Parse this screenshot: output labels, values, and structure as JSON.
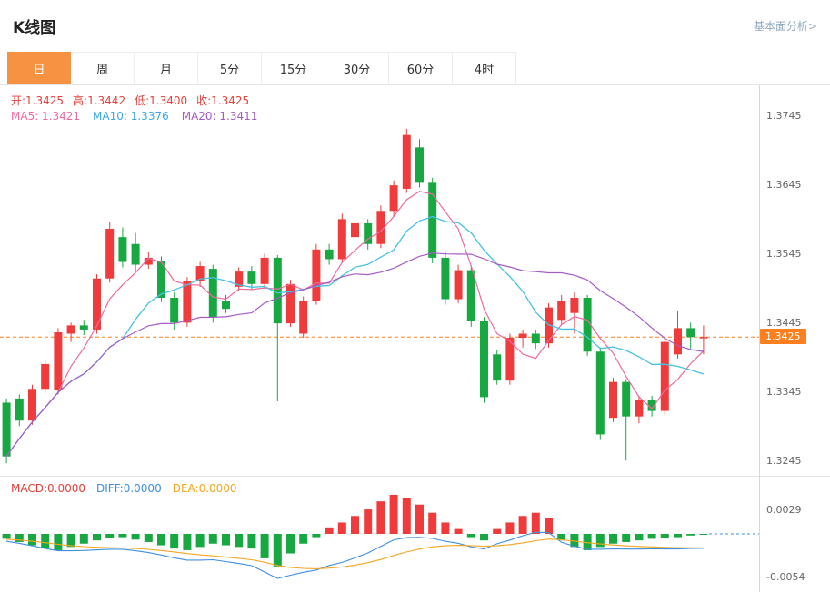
{
  "header": {
    "title": "K线图",
    "link": "基本面分析>"
  },
  "tabs": [
    {
      "id": "day",
      "label": "日",
      "active": true
    },
    {
      "id": "week",
      "label": "周",
      "active": false
    },
    {
      "id": "month",
      "label": "月",
      "active": false
    },
    {
      "id": "5min",
      "label": "5分",
      "active": false
    },
    {
      "id": "15min",
      "label": "15分",
      "active": false
    },
    {
      "id": "30min",
      "label": "30分",
      "active": false
    },
    {
      "id": "60min",
      "label": "60分",
      "active": false
    },
    {
      "id": "4hour",
      "label": "4时",
      "active": false
    }
  ],
  "legend": {
    "ohlc": [
      {
        "text": "开:1.3425",
        "color": "#e8403a"
      },
      {
        "text": "高:1.3442",
        "color": "#e8403a"
      },
      {
        "text": "低:1.3400",
        "color": "#e8403a"
      },
      {
        "text": "收:1.3425",
        "color": "#e8403a"
      }
    ],
    "ma": [
      {
        "text": "MA5: 1.3421",
        "color": "#f0689f"
      },
      {
        "text": "MA10: 1.3376",
        "color": "#3aa8e8"
      },
      {
        "text": "MA20: 1.3411",
        "color": "#a55cc5"
      }
    ],
    "macd": [
      {
        "text": "MACD:0.0000",
        "color": "#e8403a"
      },
      {
        "text": "DIFF:0.0000",
        "color": "#3e8fe0"
      },
      {
        "text": "DEA:0.0000",
        "color": "#f5a623"
      }
    ]
  },
  "price_axis": {
    "labels": [
      "1.3745",
      "1.3645",
      "1.3545",
      "1.3445",
      "1.3345",
      "1.3245"
    ],
    "values": [
      1.3745,
      1.3645,
      1.3545,
      1.3445,
      1.3345,
      1.3245
    ],
    "current_label": "1.3425"
  },
  "macd_axis": {
    "labels": [
      "0.0029",
      "-0.0054"
    ],
    "values": [
      0.0029,
      -0.0054
    ]
  },
  "colors": {
    "up": "#ef3b3b",
    "down": "#18a842",
    "ma5": "#f0689f",
    "ma10": "#45c2e2",
    "ma20": "#a55cc5",
    "price_line": "#ff7e1e",
    "diff": "#3e8fe0",
    "dea": "#f5a623",
    "tab_active": "#f79243",
    "axis_text": "#666666"
  },
  "chart_data": {
    "type": "candlestick",
    "title": "K线图",
    "period": "日",
    "ohlc_display": {
      "open": 1.3425,
      "high": 1.3442,
      "low": 1.34,
      "close": 1.3425
    },
    "ma_display": {
      "MA5": 1.3421,
      "MA10": 1.3376,
      "MA20": 1.3411
    },
    "current_price": 1.3425,
    "y_ticks": [
      1.3745,
      1.3645,
      1.3545,
      1.3445,
      1.3345,
      1.3245
    ],
    "ylim": [
      1.3224,
      1.379
    ],
    "candles": [
      [
        1.333,
        1.3336,
        1.3242,
        1.3252
      ],
      [
        1.3336,
        1.3342,
        1.3296,
        1.3304
      ],
      [
        1.3304,
        1.3356,
        1.3298,
        1.335
      ],
      [
        1.335,
        1.3392,
        1.3344,
        1.3386
      ],
      [
        1.3348,
        1.3438,
        1.3342,
        1.3432
      ],
      [
        1.343,
        1.3446,
        1.3418,
        1.3442
      ],
      [
        1.3442,
        1.345,
        1.3428,
        1.3436
      ],
      [
        1.3436,
        1.3516,
        1.343,
        1.351
      ],
      [
        1.351,
        1.3592,
        1.3504,
        1.3582
      ],
      [
        1.357,
        1.3584,
        1.3526,
        1.3534
      ],
      [
        1.356,
        1.3576,
        1.352,
        1.353
      ],
      [
        1.353,
        1.3548,
        1.3524,
        1.354
      ],
      [
        1.3536,
        1.3542,
        1.3476,
        1.3482
      ],
      [
        1.3482,
        1.349,
        1.3436,
        1.3446
      ],
      [
        1.3446,
        1.3512,
        1.344,
        1.3506
      ],
      [
        1.3506,
        1.3534,
        1.3498,
        1.3528
      ],
      [
        1.3524,
        1.353,
        1.3446,
        1.3454
      ],
      [
        1.3478,
        1.3486,
        1.346,
        1.3466
      ],
      [
        1.3498,
        1.3526,
        1.3492,
        1.352
      ],
      [
        1.352,
        1.3528,
        1.3494,
        1.3502
      ],
      [
        1.3502,
        1.3546,
        1.3496,
        1.354
      ],
      [
        1.354,
        1.3544,
        1.3332,
        1.3445
      ],
      [
        1.3445,
        1.3508,
        1.344,
        1.3502
      ],
      [
        1.343,
        1.3484,
        1.3424,
        1.3478
      ],
      [
        1.3478,
        1.356,
        1.3472,
        1.3552
      ],
      [
        1.3552,
        1.356,
        1.353,
        1.3538
      ],
      [
        1.3538,
        1.3604,
        1.3532,
        1.3596
      ],
      [
        1.357,
        1.36,
        1.3556,
        1.359
      ],
      [
        1.359,
        1.3596,
        1.3552,
        1.356
      ],
      [
        1.356,
        1.3616,
        1.3554,
        1.3608
      ],
      [
        1.3608,
        1.3652,
        1.36,
        1.3645
      ],
      [
        1.364,
        1.3727,
        1.3634,
        1.3718
      ],
      [
        1.37,
        1.3712,
        1.3642,
        1.365
      ],
      [
        1.365,
        1.3656,
        1.3532,
        1.354
      ],
      [
        1.354,
        1.3548,
        1.3472,
        1.348
      ],
      [
        1.348,
        1.353,
        1.3474,
        1.3522
      ],
      [
        1.3522,
        1.3528,
        1.344,
        1.3448
      ],
      [
        1.3448,
        1.3454,
        1.333,
        1.3338
      ],
      [
        1.34,
        1.3406,
        1.3356,
        1.3362
      ],
      [
        1.3362,
        1.343,
        1.3356,
        1.3424
      ],
      [
        1.3424,
        1.3436,
        1.341,
        1.343
      ],
      [
        1.343,
        1.3436,
        1.3408,
        1.3416
      ],
      [
        1.3416,
        1.3474,
        1.341,
        1.3468
      ],
      [
        1.345,
        1.3486,
        1.3444,
        1.3478
      ],
      [
        1.346,
        1.349,
        1.343,
        1.3482
      ],
      [
        1.3482,
        1.3486,
        1.3398,
        1.3404
      ],
      [
        1.3404,
        1.341,
        1.3276,
        1.3284
      ],
      [
        1.3308,
        1.3366,
        1.3302,
        1.336
      ],
      [
        1.336,
        1.3364,
        1.3246,
        1.331
      ],
      [
        1.331,
        1.334,
        1.33,
        1.3334
      ],
      [
        1.3334,
        1.334,
        1.331,
        1.3318
      ],
      [
        1.3318,
        1.3424,
        1.3312,
        1.3418
      ],
      [
        1.34,
        1.3462,
        1.3394,
        1.3438
      ],
      [
        1.3438,
        1.3446,
        1.3408,
        1.3425
      ],
      [
        1.3425,
        1.3442,
        1.34,
        1.3425
      ]
    ],
    "macd": {
      "display": {
        "MACD": 0,
        "DIFF": 0,
        "DEA": 0
      },
      "y_ticks": [
        0.0029,
        -0.0054
      ],
      "histogram": [
        -0.0006,
        -0.001,
        -0.0014,
        -0.0018,
        -0.002,
        -0.0016,
        -0.0012,
        -0.0008,
        -0.0005,
        -0.0004,
        -0.0007,
        -0.001,
        -0.0014,
        -0.0018,
        -0.002,
        -0.0016,
        -0.0012,
        -0.0014,
        -0.0016,
        -0.0018,
        -0.003,
        -0.004,
        -0.0024,
        -0.0012,
        -0.0004,
        0.0008,
        0.0014,
        0.0022,
        0.003,
        0.004,
        0.0048,
        0.0044,
        0.0036,
        0.0026,
        0.0014,
        0.0006,
        -0.0004,
        -0.0008,
        0.0006,
        0.0014,
        0.0022,
        0.0026,
        0.002,
        -0.0008,
        -0.0016,
        -0.002,
        -0.0016,
        -0.0012,
        -0.001,
        -0.0008,
        -0.0006,
        -0.0005,
        -0.0004,
        -0.0002,
        -0.0001
      ]
    }
  }
}
